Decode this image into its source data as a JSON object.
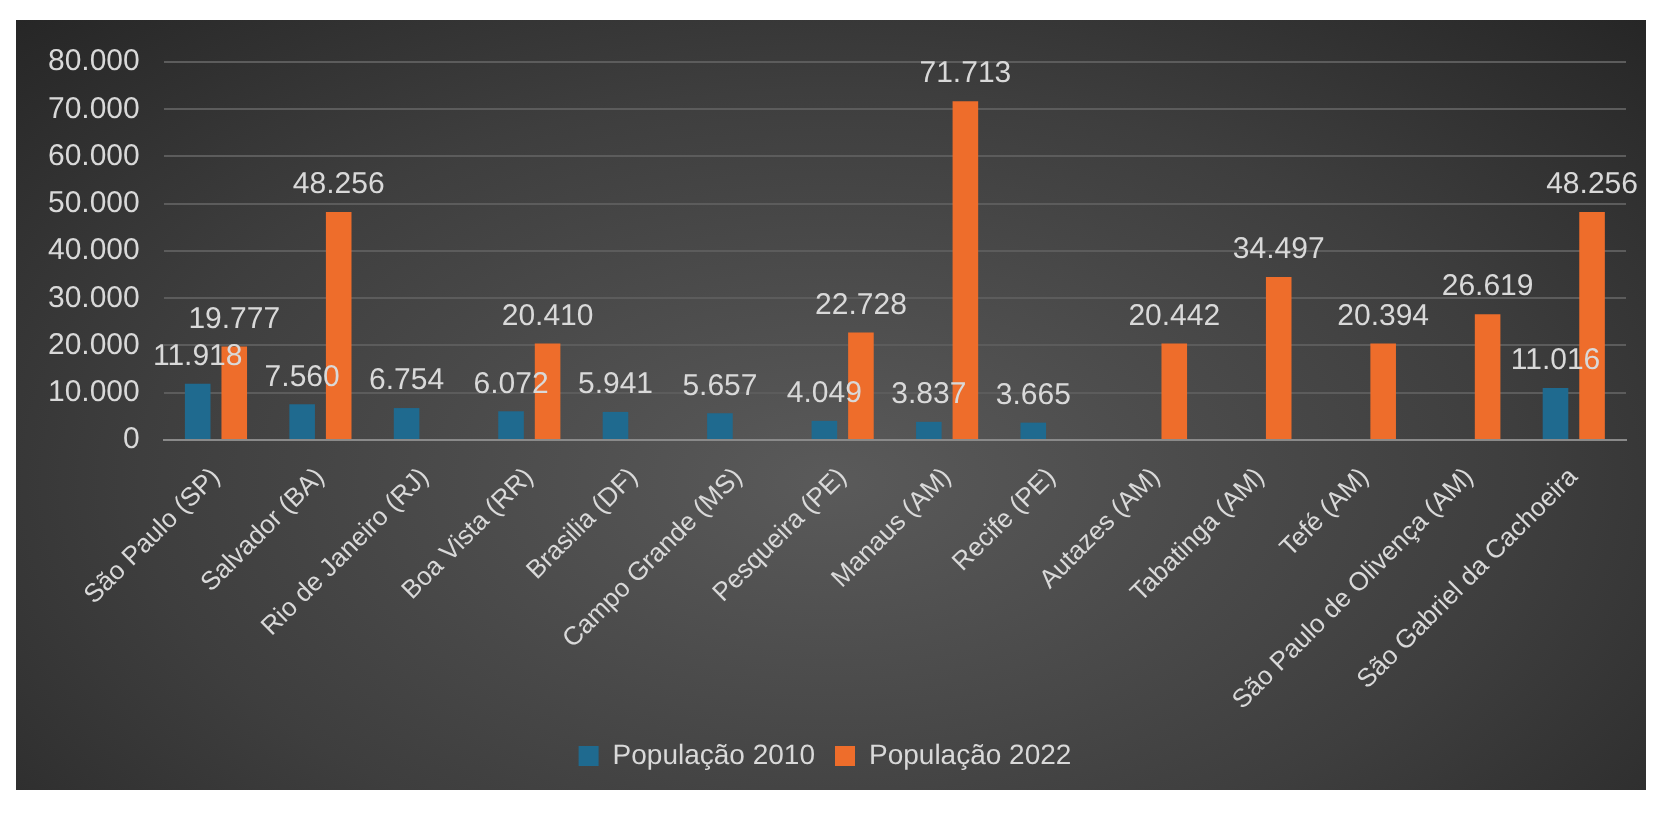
{
  "chart_data": {
    "type": "bar",
    "categories": [
      "São Paulo (SP)",
      "Salvador (BA)",
      "Rio de Janeiro (RJ)",
      "Boa Vista (RR)",
      "Brasilia (DF)",
      "Campo Grande (MS)",
      "Pesqueira (PE)",
      "Manaus (AM)",
      "Recife (PE)",
      "Autazes (AM)",
      "Tabatinga (AM)",
      "Tefé (AM)",
      "São Paulo de Olivença (AM)",
      "São Gabriel da Cachoeira"
    ],
    "series": [
      {
        "name": "População 2010",
        "color": "#1f6a8f",
        "values": [
          11918,
          7560,
          6754,
          6072,
          5941,
          5657,
          4049,
          3837,
          3665,
          null,
          null,
          null,
          null,
          11016
        ],
        "value_labels": [
          "11.918",
          "7.560",
          "6.754",
          "6.072",
          "5.941",
          "5.657",
          "4.049",
          "3.837",
          "3.665",
          null,
          null,
          null,
          null,
          "11.016"
        ]
      },
      {
        "name": "População 2022",
        "color": "#ee6d2b",
        "values": [
          19777,
          48256,
          null,
          20410,
          null,
          null,
          22728,
          71713,
          null,
          20442,
          34497,
          20394,
          26619,
          48256
        ],
        "value_labels": [
          "19.777",
          "48.256",
          null,
          "20.410",
          null,
          null,
          "22.728",
          "71.713",
          null,
          "20.442",
          "34.497",
          "20.394",
          "26.619",
          "48.256"
        ]
      }
    ],
    "ylim": [
      0,
      80000
    ],
    "yticks": [
      0,
      {
        "value": 10000,
        "label": "10.000"
      },
      {
        "value": 20000,
        "label": "20.000"
      },
      {
        "value": 30000,
        "label": "30.000"
      },
      {
        "value": 40000,
        "label": "40.000"
      },
      {
        "value": 50000,
        "label": "50.000"
      },
      {
        "value": 60000,
        "label": "60.000"
      },
      {
        "value": 70000,
        "label": "70.000"
      },
      {
        "value": 80000,
        "label": "80.000"
      }
    ],
    "grid": "y",
    "legend": "bottom"
  }
}
